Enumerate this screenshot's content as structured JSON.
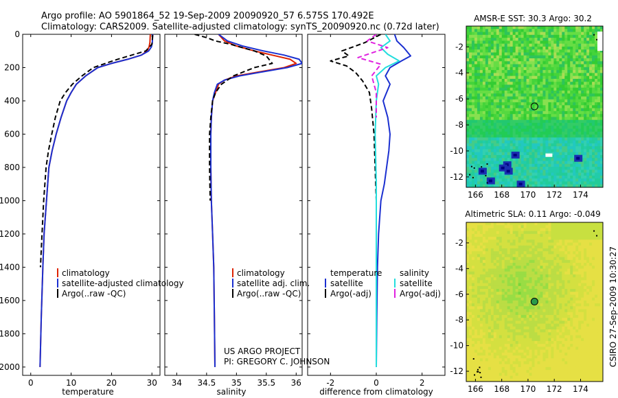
{
  "header": {
    "line1": "Argo profile: AO 5901864_52 19-Sep-2009 20090920_57 6.575S 170.492E",
    "line2": "Climatology: CARS2009. Satellite-adjusted climatology: synTS_20090920.nc (0.72d later)"
  },
  "side_label": "CSIRO 27-Sep-2009 10:30:27",
  "credit": {
    "line1": "US ARGO PROJECT",
    "line2": "PI: GREGORY C. JOHNSON"
  },
  "colors": {
    "climatology": "#dd2200",
    "satellite": "#1a2fd0",
    "argo": "#000000",
    "salinity_satellite": "#22dddd",
    "salinity_argo": "#e020e0"
  },
  "chart_data": [
    {
      "type": "line",
      "id": "temperature",
      "xlabel": "temperature",
      "ylabel": "",
      "xlim": [
        -2,
        32
      ],
      "ylim": [
        2050,
        0
      ],
      "y_inverted": true,
      "xticks": [
        0,
        10,
        20,
        30
      ],
      "yticks": [
        0,
        200,
        400,
        600,
        800,
        1000,
        1200,
        1400,
        1600,
        1800,
        2000
      ],
      "legend": [
        "climatology",
        "satellite-adjusted climatology",
        "Argo(..raw -QC)"
      ],
      "series": [
        {
          "name": "climatology",
          "style": "solid",
          "x": [
            29.6,
            29.5,
            29.3,
            28.8,
            27.4,
            24.0,
            20.0,
            16.6,
            13.6,
            11.3,
            10.0,
            8.9,
            7.5,
            6.3,
            5.3,
            4.5,
            3.9,
            3.3,
            3.0,
            2.6,
            2.3
          ],
          "y": [
            0,
            50,
            75,
            100,
            125,
            150,
            175,
            200,
            250,
            300,
            350,
            400,
            500,
            600,
            700,
            800,
            1000,
            1200,
            1400,
            1700,
            2000
          ]
        },
        {
          "name": "satellite-adjusted climatology",
          "style": "solid",
          "x": [
            30.2,
            30.1,
            29.9,
            29.2,
            27.4,
            24.0,
            20.0,
            16.6,
            13.6,
            11.3,
            10.0,
            8.9,
            7.5,
            6.3,
            5.3,
            4.5,
            3.9,
            3.3,
            3.0,
            2.6,
            2.3
          ],
          "y": [
            0,
            50,
            75,
            100,
            125,
            150,
            175,
            200,
            250,
            300,
            350,
            400,
            500,
            600,
            700,
            800,
            1000,
            1200,
            1400,
            1700,
            2000
          ]
        },
        {
          "name": "Argo(..raw -QC)",
          "style": "dashed",
          "x": [
            30.2,
            30.0,
            28.5,
            25.0,
            21.5,
            18.5,
            15.5,
            12.7,
            10.3,
            8.6,
            7.3,
            6.1,
            5.2,
            4.4,
            3.8,
            3.2,
            2.8,
            2.4
          ],
          "y": [
            5,
            60,
            100,
            125,
            150,
            175,
            200,
            250,
            300,
            350,
            400,
            500,
            600,
            700,
            800,
            1000,
            1200,
            1400
          ]
        }
      ]
    },
    {
      "type": "line",
      "id": "salinity",
      "xlabel": "salinity",
      "ylabel": "",
      "xlim": [
        33.8,
        36.1
      ],
      "ylim": [
        2050,
        0
      ],
      "y_inverted": true,
      "xticks": [
        34,
        34.5,
        35,
        35.5,
        36
      ],
      "legend": [
        "climatology",
        "satellite adj. clim.",
        "Argo(..raw -QC)"
      ],
      "series": [
        {
          "name": "climatology",
          "style": "solid",
          "x": [
            34.7,
            34.8,
            35.0,
            35.3,
            35.6,
            35.9,
            36.0,
            35.8,
            35.4,
            35.0,
            34.8,
            34.7,
            34.65,
            34.6,
            34.58,
            34.57,
            34.57,
            34.58,
            34.6,
            34.62,
            34.63,
            34.64
          ],
          "y": [
            0,
            40,
            70,
            100,
            125,
            150,
            175,
            200,
            225,
            250,
            275,
            300,
            350,
            400,
            500,
            600,
            800,
            1000,
            1200,
            1400,
            1700,
            2000
          ]
        },
        {
          "name": "satellite adj. clim.",
          "style": "solid",
          "x": [
            34.7,
            34.85,
            35.1,
            35.45,
            35.8,
            36.05,
            36.1,
            35.85,
            35.45,
            35.05,
            34.8,
            34.68,
            34.63,
            34.6,
            34.58,
            34.57,
            34.57,
            34.58,
            34.6,
            34.62,
            34.63,
            34.64
          ],
          "y": [
            0,
            40,
            70,
            100,
            125,
            150,
            175,
            200,
            225,
            250,
            275,
            300,
            350,
            400,
            500,
            600,
            800,
            1000,
            1200,
            1400,
            1700,
            2000
          ]
        },
        {
          "name": "Argo(..raw -QC)",
          "style": "dashed",
          "x": [
            34.3,
            34.5,
            34.65,
            34.9,
            35.1,
            35.3,
            35.5,
            35.6,
            35.3,
            34.95,
            34.75,
            34.65,
            34.6,
            34.57,
            34.55,
            34.55,
            34.56
          ],
          "y": [
            0,
            20,
            40,
            60,
            80,
            100,
            130,
            175,
            200,
            250,
            300,
            350,
            400,
            500,
            600,
            800,
            1000
          ]
        }
      ]
    },
    {
      "type": "line",
      "id": "difference",
      "xlabel": "difference from climatology",
      "ylabel": "",
      "xlim": [
        -3,
        3
      ],
      "ylim": [
        2050,
        0
      ],
      "y_inverted": true,
      "xticks": [
        -2,
        0,
        2
      ],
      "legend": [
        "temperature",
        "satellite",
        "Argo(-adj)",
        "salinity",
        "satellite",
        "Argo(-adj)"
      ],
      "series": [
        {
          "name": "temperature satellite",
          "style": "solid",
          "color_key": "satellite",
          "x": [
            0.8,
            0.9,
            1.2,
            1.5,
            1.1,
            0.6,
            0.4,
            0.6,
            0.3,
            0.5,
            0.6,
            0.55,
            0.45,
            0.35,
            0.2,
            0.1,
            0.05,
            0.02,
            0.0
          ],
          "y": [
            0,
            40,
            80,
            130,
            160,
            200,
            250,
            300,
            400,
            500,
            600,
            700,
            800,
            900,
            1000,
            1200,
            1400,
            1700,
            2000
          ]
        },
        {
          "name": "temperature Argo(-adj)",
          "style": "dashed",
          "color_key": "argo",
          "x": [
            0.2,
            -0.5,
            -1.5,
            -1.2,
            -2.0,
            -1.3,
            -0.9,
            -0.6,
            -0.3,
            -0.2,
            -0.1,
            -0.05,
            0.0,
            0.0
          ],
          "y": [
            0,
            50,
            100,
            130,
            160,
            190,
            230,
            280,
            350,
            450,
            600,
            800,
            1000,
            1400
          ]
        },
        {
          "name": "salinity satellite",
          "style": "solid",
          "color_key": "salinity_satellite",
          "x": [
            0.4,
            0.6,
            0.2,
            0.5,
            1.0,
            0.4,
            0.0,
            0.1,
            0.0,
            -0.05,
            0.0,
            0.0,
            0.0
          ],
          "y": [
            0,
            40,
            80,
            120,
            160,
            200,
            250,
            300,
            400,
            600,
            900,
            1400,
            2000
          ]
        },
        {
          "name": "salinity Argo(-adj)",
          "style": "dashed",
          "color_key": "salinity_argo",
          "x": [
            0.0,
            -0.4,
            0.5,
            -0.8,
            0.2,
            -0.2,
            0.0,
            0.0
          ],
          "y": [
            0,
            40,
            80,
            140,
            180,
            250,
            350,
            500
          ]
        }
      ]
    },
    {
      "type": "heatmap",
      "id": "sst_map",
      "title": "AMSR-E SST: 30.3 Argo: 30.2",
      "xlim": [
        165.3,
        175.7
      ],
      "ylim": [
        -12.8,
        -0.4
      ],
      "xticks": [
        166,
        168,
        170,
        172,
        174
      ],
      "yticks": [
        -2,
        -4,
        -6,
        -8,
        -10,
        -12
      ],
      "argo_position": [
        170.492,
        -6.575
      ]
    },
    {
      "type": "heatmap",
      "id": "sla_map",
      "title": "Altimetric SLA: 0.11 Argo: -0.049",
      "xlim": [
        165.3,
        175.7
      ],
      "ylim": [
        -12.8,
        -0.4
      ],
      "xticks": [
        166,
        168,
        170,
        172,
        174
      ],
      "yticks": [
        -2,
        -4,
        -6,
        -8,
        -10,
        -12
      ],
      "argo_position": [
        170.492,
        -6.575
      ]
    }
  ]
}
